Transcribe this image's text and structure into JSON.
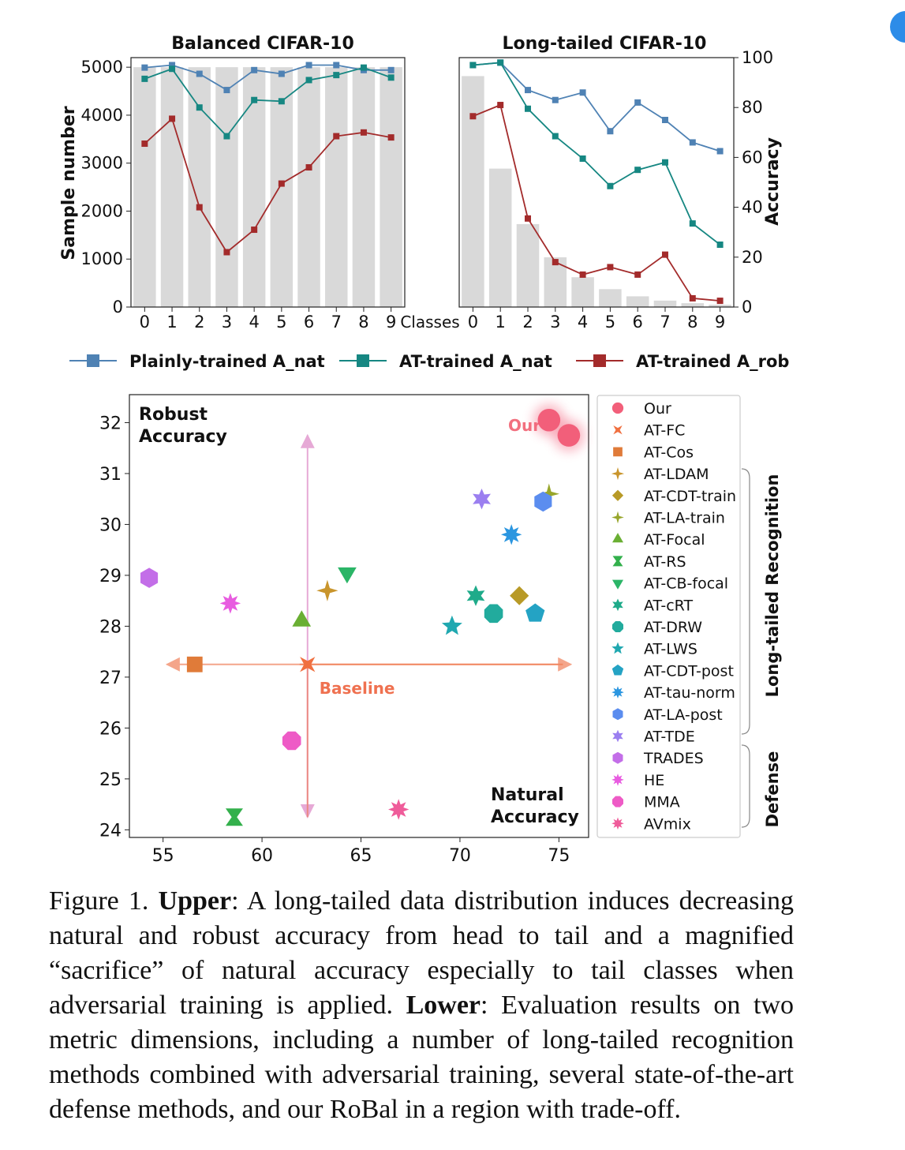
{
  "caption": {
    "prefix": "Figure 1. ",
    "upper_label": "Upper",
    "upper_text": ": A long-tailed data distribution induces decreasing natural and robust accuracy from head to tail and a magnified “sacrifice” of natural accuracy especially to tail classes when adversarial training is applied.",
    "lower_label": "Lower",
    "lower_text": ": Evaluation results on two metric dimensions, including a number of long-tailed recognition methods combined with adversarial training, several state-of-the-art defense methods, and our RoBal in a region with trade-off."
  },
  "chart_data": [
    {
      "type": "bar",
      "title": "Balanced CIFAR-10",
      "ylabel": "Sample number",
      "categories": [
        "0",
        "1",
        "2",
        "3",
        "4",
        "5",
        "6",
        "7",
        "8",
        "9"
      ],
      "values": [
        5000,
        5000,
        5000,
        5000,
        5000,
        5000,
        5000,
        5000,
        5000,
        5000
      ],
      "ylim": [
        0,
        5200
      ],
      "yticks": [
        0,
        1000,
        2000,
        3000,
        4000,
        5000
      ],
      "accuracy_ylim": [
        0,
        100
      ],
      "series": [
        {
          "name": "Plainly-trained A_nat",
          "color": "#4f82b4",
          "values": [
            96.0,
            97.0,
            93.5,
            87.0,
            95.0,
            93.5,
            97.0,
            97.0,
            95.0,
            95.0
          ]
        },
        {
          "name": "AT-trained A_nat",
          "color": "#168782",
          "values": [
            91.5,
            95.5,
            80.0,
            68.5,
            83.0,
            82.5,
            91.0,
            93.0,
            96.0,
            92.0
          ]
        },
        {
          "name": "AT-trained A_rob",
          "color": "#a32b2b",
          "values": [
            65.5,
            75.5,
            40.0,
            22.0,
            31.0,
            49.5,
            56.0,
            68.5,
            70.0,
            68.0
          ]
        }
      ]
    },
    {
      "type": "bar",
      "title": "Long-tailed CIFAR-10",
      "ylabel": "Accuracy",
      "xlabel": "Classes",
      "categories": [
        "0",
        "1",
        "2",
        "3",
        "4",
        "5",
        "6",
        "7",
        "8",
        "9"
      ],
      "values": [
        5000,
        2997,
        1796,
        1077,
        645,
        387,
        232,
        139,
        83,
        50
      ],
      "ylim": [
        0,
        5400
      ],
      "accuracy_ylim": [
        0,
        100
      ],
      "accuracy_yticks": [
        0,
        20,
        40,
        60,
        80,
        100
      ],
      "series": [
        {
          "name": "Plainly-trained A_nat",
          "color": "#4f82b4",
          "values": [
            97.0,
            98.0,
            87.0,
            83.0,
            86.0,
            70.5,
            82.0,
            75.0,
            66.0,
            62.5
          ]
        },
        {
          "name": "AT-trained A_nat",
          "color": "#168782",
          "values": [
            97.0,
            98.0,
            79.5,
            68.5,
            59.5,
            48.5,
            55.0,
            58.0,
            33.5,
            25.0
          ]
        },
        {
          "name": "AT-trained A_rob",
          "color": "#a32b2b",
          "values": [
            76.5,
            81.0,
            35.5,
            18.0,
            13.0,
            16.0,
            13.0,
            21.0,
            3.5,
            2.5
          ]
        }
      ]
    },
    {
      "type": "scatter",
      "xlabel": "Natural Accuracy",
      "ylabel": "Robust Accuracy",
      "xlim": [
        53.3,
        76.5
      ],
      "ylim": [
        23.85,
        32.55
      ],
      "xticks": [
        55,
        60,
        65,
        70,
        75
      ],
      "yticks": [
        24,
        25,
        26,
        27,
        28,
        29,
        30,
        31,
        32
      ],
      "annotations": {
        "baseline": "Baseline",
        "our": "Our"
      },
      "groups": {
        "long_tailed": "Long-tailed Recognition",
        "defense": "Defense"
      },
      "series": [
        {
          "name": "Our",
          "marker": "circle",
          "color": "#f25f7a",
          "glow": true,
          "points": [
            [
              74.5,
              32.05
            ],
            [
              75.5,
              31.75
            ]
          ]
        },
        {
          "name": "AT-FC",
          "marker": "x",
          "color": "#f07040",
          "points": [
            [
              62.3,
              27.25
            ]
          ]
        },
        {
          "name": "AT-Cos",
          "marker": "square",
          "color": "#e07b39",
          "points": [
            [
              56.6,
              27.25
            ]
          ]
        },
        {
          "name": "AT-LDAM",
          "marker": "plus",
          "color": "#c9952c",
          "points": [
            [
              63.3,
              28.7
            ]
          ]
        },
        {
          "name": "AT-CDT-train",
          "marker": "diamond",
          "color": "#b89a27",
          "points": [
            [
              73.0,
              28.6
            ]
          ]
        },
        {
          "name": "AT-LA-train",
          "marker": "star4",
          "color": "#98a62b",
          "points": [
            [
              74.5,
              30.6
            ]
          ]
        },
        {
          "name": "AT-Focal",
          "marker": "triangle-up",
          "color": "#6aaf33",
          "points": [
            [
              62.0,
              28.1
            ]
          ]
        },
        {
          "name": "AT-RS",
          "marker": "bowtie",
          "color": "#33b04c",
          "points": [
            [
              58.6,
              24.25
            ]
          ]
        },
        {
          "name": "AT-CB-focal",
          "marker": "triangle-down",
          "color": "#2bb567",
          "points": [
            [
              64.3,
              29.05
            ]
          ]
        },
        {
          "name": "AT-cRT",
          "marker": "star6",
          "color": "#1fab8a",
          "points": [
            [
              70.8,
              28.6
            ]
          ]
        },
        {
          "name": "AT-DRW",
          "marker": "octagon",
          "color": "#22ab9d",
          "points": [
            [
              71.7,
              28.25
            ]
          ]
        },
        {
          "name": "AT-LWS",
          "marker": "star5",
          "color": "#20a8b0",
          "points": [
            [
              69.6,
              28.0
            ]
          ]
        },
        {
          "name": "AT-CDT-post",
          "marker": "pentagon",
          "color": "#24a3c4",
          "points": [
            [
              73.8,
              28.25
            ]
          ]
        },
        {
          "name": "AT-tau-norm",
          "marker": "star8",
          "color": "#2b96e0",
          "points": [
            [
              72.6,
              29.8
            ]
          ]
        },
        {
          "name": "AT-LA-post",
          "marker": "hexagon",
          "color": "#5b8def",
          "points": [
            [
              74.2,
              30.45
            ]
          ]
        },
        {
          "name": "AT-TDE",
          "marker": "star6",
          "color": "#9b7ff0",
          "points": [
            [
              71.1,
              30.5
            ]
          ]
        },
        {
          "name": "TRADES",
          "marker": "hexagon",
          "color": "#c36ee8",
          "points": [
            [
              54.3,
              28.95
            ]
          ]
        },
        {
          "name": "HE",
          "marker": "star8",
          "color": "#e85ce0",
          "points": [
            [
              58.4,
              28.45
            ]
          ]
        },
        {
          "name": "MMA",
          "marker": "octagon",
          "color": "#ee5bc6",
          "points": [
            [
              61.5,
              25.75
            ]
          ]
        },
        {
          "name": "AVmix",
          "marker": "star8",
          "color": "#ef5c9a",
          "points": [
            [
              66.9,
              24.4
            ]
          ]
        }
      ]
    }
  ]
}
